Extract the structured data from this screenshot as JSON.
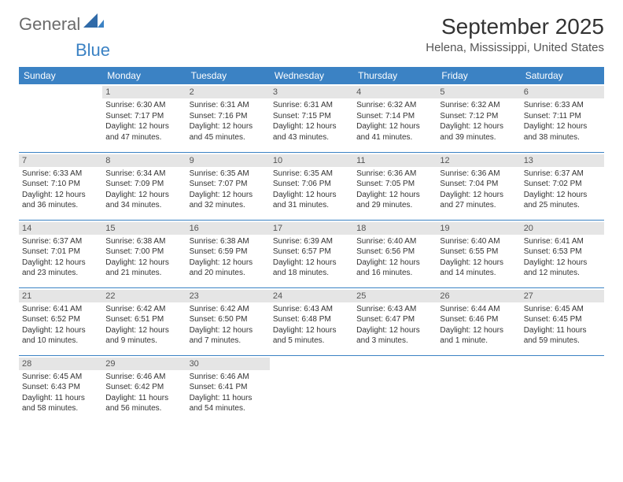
{
  "brand": {
    "general": "General",
    "blue": "Blue"
  },
  "title": "September 2025",
  "location": "Helena, Mississippi, United States",
  "header_bg": "#3b82c4",
  "header_text": "#ffffff",
  "daynum_bg": "#e5e5e5",
  "border_color": "#3b82c4",
  "day_headers": [
    "Sunday",
    "Monday",
    "Tuesday",
    "Wednesday",
    "Thursday",
    "Friday",
    "Saturday"
  ],
  "weeks": [
    [
      {
        "num": "",
        "sunrise": "",
        "sunset": "",
        "daylight": ""
      },
      {
        "num": "1",
        "sunrise": "Sunrise: 6:30 AM",
        "sunset": "Sunset: 7:17 PM",
        "daylight": "Daylight: 12 hours and 47 minutes."
      },
      {
        "num": "2",
        "sunrise": "Sunrise: 6:31 AM",
        "sunset": "Sunset: 7:16 PM",
        "daylight": "Daylight: 12 hours and 45 minutes."
      },
      {
        "num": "3",
        "sunrise": "Sunrise: 6:31 AM",
        "sunset": "Sunset: 7:15 PM",
        "daylight": "Daylight: 12 hours and 43 minutes."
      },
      {
        "num": "4",
        "sunrise": "Sunrise: 6:32 AM",
        "sunset": "Sunset: 7:14 PM",
        "daylight": "Daylight: 12 hours and 41 minutes."
      },
      {
        "num": "5",
        "sunrise": "Sunrise: 6:32 AM",
        "sunset": "Sunset: 7:12 PM",
        "daylight": "Daylight: 12 hours and 39 minutes."
      },
      {
        "num": "6",
        "sunrise": "Sunrise: 6:33 AM",
        "sunset": "Sunset: 7:11 PM",
        "daylight": "Daylight: 12 hours and 38 minutes."
      }
    ],
    [
      {
        "num": "7",
        "sunrise": "Sunrise: 6:33 AM",
        "sunset": "Sunset: 7:10 PM",
        "daylight": "Daylight: 12 hours and 36 minutes."
      },
      {
        "num": "8",
        "sunrise": "Sunrise: 6:34 AM",
        "sunset": "Sunset: 7:09 PM",
        "daylight": "Daylight: 12 hours and 34 minutes."
      },
      {
        "num": "9",
        "sunrise": "Sunrise: 6:35 AM",
        "sunset": "Sunset: 7:07 PM",
        "daylight": "Daylight: 12 hours and 32 minutes."
      },
      {
        "num": "10",
        "sunrise": "Sunrise: 6:35 AM",
        "sunset": "Sunset: 7:06 PM",
        "daylight": "Daylight: 12 hours and 31 minutes."
      },
      {
        "num": "11",
        "sunrise": "Sunrise: 6:36 AM",
        "sunset": "Sunset: 7:05 PM",
        "daylight": "Daylight: 12 hours and 29 minutes."
      },
      {
        "num": "12",
        "sunrise": "Sunrise: 6:36 AM",
        "sunset": "Sunset: 7:04 PM",
        "daylight": "Daylight: 12 hours and 27 minutes."
      },
      {
        "num": "13",
        "sunrise": "Sunrise: 6:37 AM",
        "sunset": "Sunset: 7:02 PM",
        "daylight": "Daylight: 12 hours and 25 minutes."
      }
    ],
    [
      {
        "num": "14",
        "sunrise": "Sunrise: 6:37 AM",
        "sunset": "Sunset: 7:01 PM",
        "daylight": "Daylight: 12 hours and 23 minutes."
      },
      {
        "num": "15",
        "sunrise": "Sunrise: 6:38 AM",
        "sunset": "Sunset: 7:00 PM",
        "daylight": "Daylight: 12 hours and 21 minutes."
      },
      {
        "num": "16",
        "sunrise": "Sunrise: 6:38 AM",
        "sunset": "Sunset: 6:59 PM",
        "daylight": "Daylight: 12 hours and 20 minutes."
      },
      {
        "num": "17",
        "sunrise": "Sunrise: 6:39 AM",
        "sunset": "Sunset: 6:57 PM",
        "daylight": "Daylight: 12 hours and 18 minutes."
      },
      {
        "num": "18",
        "sunrise": "Sunrise: 6:40 AM",
        "sunset": "Sunset: 6:56 PM",
        "daylight": "Daylight: 12 hours and 16 minutes."
      },
      {
        "num": "19",
        "sunrise": "Sunrise: 6:40 AM",
        "sunset": "Sunset: 6:55 PM",
        "daylight": "Daylight: 12 hours and 14 minutes."
      },
      {
        "num": "20",
        "sunrise": "Sunrise: 6:41 AM",
        "sunset": "Sunset: 6:53 PM",
        "daylight": "Daylight: 12 hours and 12 minutes."
      }
    ],
    [
      {
        "num": "21",
        "sunrise": "Sunrise: 6:41 AM",
        "sunset": "Sunset: 6:52 PM",
        "daylight": "Daylight: 12 hours and 10 minutes."
      },
      {
        "num": "22",
        "sunrise": "Sunrise: 6:42 AM",
        "sunset": "Sunset: 6:51 PM",
        "daylight": "Daylight: 12 hours and 9 minutes."
      },
      {
        "num": "23",
        "sunrise": "Sunrise: 6:42 AM",
        "sunset": "Sunset: 6:50 PM",
        "daylight": "Daylight: 12 hours and 7 minutes."
      },
      {
        "num": "24",
        "sunrise": "Sunrise: 6:43 AM",
        "sunset": "Sunset: 6:48 PM",
        "daylight": "Daylight: 12 hours and 5 minutes."
      },
      {
        "num": "25",
        "sunrise": "Sunrise: 6:43 AM",
        "sunset": "Sunset: 6:47 PM",
        "daylight": "Daylight: 12 hours and 3 minutes."
      },
      {
        "num": "26",
        "sunrise": "Sunrise: 6:44 AM",
        "sunset": "Sunset: 6:46 PM",
        "daylight": "Daylight: 12 hours and 1 minute."
      },
      {
        "num": "27",
        "sunrise": "Sunrise: 6:45 AM",
        "sunset": "Sunset: 6:45 PM",
        "daylight": "Daylight: 11 hours and 59 minutes."
      }
    ],
    [
      {
        "num": "28",
        "sunrise": "Sunrise: 6:45 AM",
        "sunset": "Sunset: 6:43 PM",
        "daylight": "Daylight: 11 hours and 58 minutes."
      },
      {
        "num": "29",
        "sunrise": "Sunrise: 6:46 AM",
        "sunset": "Sunset: 6:42 PM",
        "daylight": "Daylight: 11 hours and 56 minutes."
      },
      {
        "num": "30",
        "sunrise": "Sunrise: 6:46 AM",
        "sunset": "Sunset: 6:41 PM",
        "daylight": "Daylight: 11 hours and 54 minutes."
      },
      {
        "num": "",
        "sunrise": "",
        "sunset": "",
        "daylight": ""
      },
      {
        "num": "",
        "sunrise": "",
        "sunset": "",
        "daylight": ""
      },
      {
        "num": "",
        "sunrise": "",
        "sunset": "",
        "daylight": ""
      },
      {
        "num": "",
        "sunrise": "",
        "sunset": "",
        "daylight": ""
      }
    ]
  ]
}
